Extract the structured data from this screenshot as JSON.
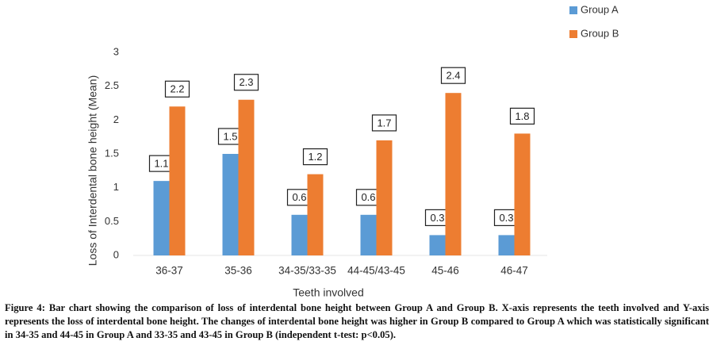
{
  "chart_data": {
    "type": "bar",
    "x_label": "Teeth involved",
    "y_label": "Loss of Interdental bone height (Mean)",
    "categories": [
      "36-37",
      "35-36",
      "34-35/33-35",
      "44-45/43-45",
      "45-46",
      "46-47"
    ],
    "series": [
      {
        "name": "Group A",
        "color": "#5b9bd5",
        "values": [
          1.1,
          1.5,
          0.6,
          0.6,
          0.3,
          0.3
        ]
      },
      {
        "name": "Group B",
        "color": "#ed7d31",
        "values": [
          2.2,
          2.3,
          1.2,
          1.7,
          2.4,
          1.8
        ]
      }
    ],
    "ylim": [
      0,
      3
    ],
    "yticks": [
      0,
      0.5,
      1,
      1.5,
      2,
      2.5,
      3
    ],
    "grid": false,
    "legend": "top-right",
    "caption": "Figure 4: Bar chart showing the comparison of loss of interdental bone height between Group A and Group B. X-axis represents the teeth involved and Y-axis represents the loss of interdental bone height. The changes of interdental bone height  was higher in Group B compared to Group A which was statistically significant in 34-35 and 44-45 in Group A and 33-35 and 43-45 in Group B (independent t-test: p<0.05)."
  }
}
